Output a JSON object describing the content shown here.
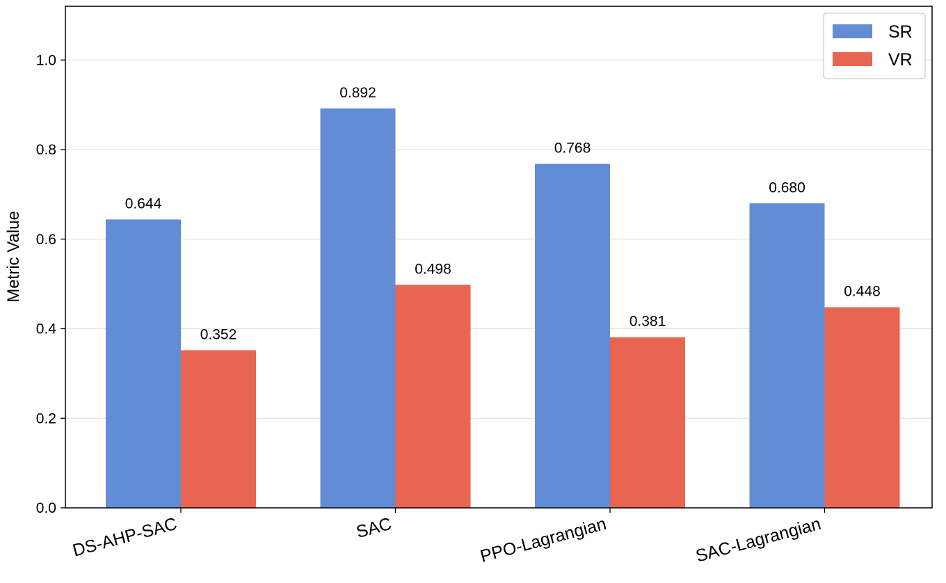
{
  "chart_data": {
    "type": "bar",
    "title": "",
    "xlabel": "",
    "ylabel": "Metric Value",
    "categories": [
      "DS-AHP-SAC",
      "SAC",
      "PPO-Lagrangian",
      "SAC-Lagrangian"
    ],
    "series": [
      {
        "name": "SR",
        "color": "#628cd6",
        "values": [
          0.644,
          0.892,
          0.768,
          0.68
        ],
        "labels": [
          "0.644",
          "0.892",
          "0.768",
          "0.680"
        ]
      },
      {
        "name": "VR",
        "color": "#e86552",
        "values": [
          0.352,
          0.498,
          0.381,
          0.448
        ],
        "labels": [
          "0.352",
          "0.498",
          "0.381",
          "0.448"
        ]
      }
    ],
    "ylim": [
      0,
      1.12
    ],
    "yticks": [
      0.0,
      0.2,
      0.4,
      0.6,
      0.8,
      1.0
    ],
    "ytick_labels": [
      "0.0",
      "0.2",
      "0.4",
      "0.6",
      "0.8",
      "1.0"
    ],
    "grid": "horizontal",
    "legend_position": "top-right",
    "x_tick_rotation_deg": 15
  }
}
